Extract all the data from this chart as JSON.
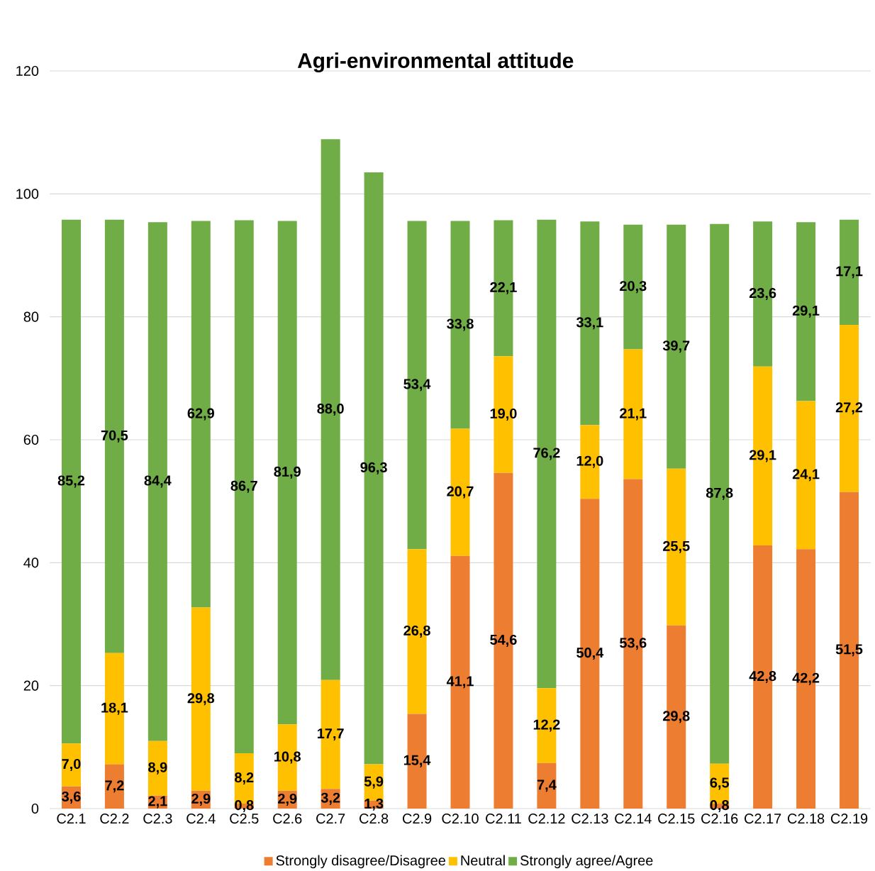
{
  "chart_data": {
    "type": "bar",
    "title": "Agri-environmental attitude",
    "stacked": true,
    "categories": [
      "C2.1",
      "C2.2",
      "C2.3",
      "C2.4",
      "C2.5",
      "C2.6",
      "C2.7",
      "C2.8",
      "C2.9",
      "C2.10",
      "C2.11",
      "C2.12",
      "C2.13",
      "C2.14",
      "C2.15",
      "C2.16",
      "C2.17",
      "C2.18",
      "C2.19"
    ],
    "series": [
      {
        "name": "Strongly disagree/Disagree",
        "color": "#ed7d31",
        "values": [
          3.6,
          7.2,
          2.1,
          2.9,
          0.8,
          2.9,
          3.2,
          1.3,
          15.4,
          41.1,
          54.6,
          7.4,
          50.4,
          53.6,
          29.8,
          0.8,
          42.8,
          42.2,
          51.5
        ],
        "value_labels": [
          "3,6",
          "7,2",
          "2,1",
          "2,9",
          "0,8",
          "2,9",
          "3,2",
          "1,3",
          "15,4",
          "41,1",
          "54,6",
          "7,4",
          "50,4",
          "53,6",
          "29,8",
          "0,8",
          "42,8",
          "42,2",
          "51,5"
        ]
      },
      {
        "name": "Neutral",
        "color": "#ffc000",
        "values": [
          7.0,
          18.1,
          8.9,
          29.8,
          8.2,
          10.8,
          17.7,
          5.9,
          26.8,
          20.7,
          19.0,
          12.2,
          12.0,
          21.1,
          25.5,
          6.5,
          29.1,
          24.1,
          27.2
        ],
        "value_labels": [
          "7,0",
          "18,1",
          "8,9",
          "29,8",
          "8,2",
          "10,8",
          "17,7",
          "5,9",
          "26,8",
          "20,7",
          "19,0",
          "12,2",
          "12,0",
          "21,1",
          "25,5",
          "6,5",
          "29,1",
          "24,1",
          "27,2"
        ]
      },
      {
        "name": "Strongly agree/Agree",
        "color": "#70ad47",
        "values": [
          85.2,
          70.5,
          84.4,
          62.9,
          86.7,
          81.9,
          88.0,
          96.3,
          53.4,
          33.8,
          22.1,
          76.2,
          33.1,
          20.3,
          39.7,
          87.8,
          23.6,
          29.1,
          17.1
        ],
        "value_labels": [
          "85,2",
          "70,5",
          "84,4",
          "62,9",
          "86,7",
          "81,9",
          "88,0",
          "96,3",
          "53,4",
          "33,8",
          "22,1",
          "76,2",
          "33,1",
          "20,3",
          "39,7",
          "87,8",
          "23,6",
          "29,1",
          "17,1"
        ]
      }
    ],
    "ylim": [
      0,
      120
    ],
    "yticks": [
      0,
      20,
      40,
      60,
      80,
      100,
      120
    ],
    "grid": "y",
    "legend": "bottom"
  }
}
